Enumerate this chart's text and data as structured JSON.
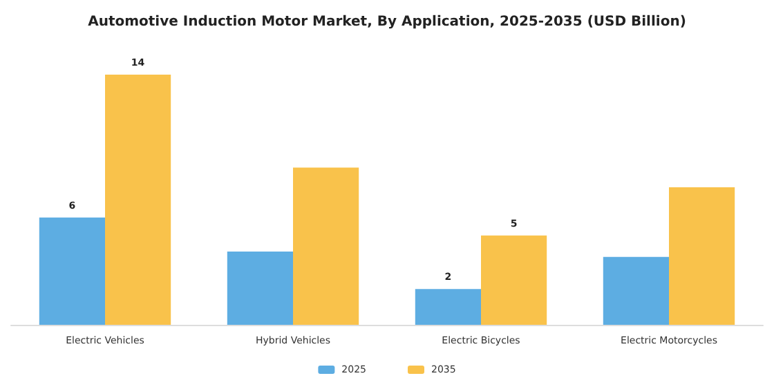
{
  "chart_data": {
    "type": "bar",
    "title": "Automotive Induction Motor Market, By Application, 2025-2035 (USD Billion)",
    "categories": [
      "Electric Vehicles",
      "Hybrid Vehicles",
      "Electric Bicycles",
      "Electric Motorcycles"
    ],
    "series": [
      {
        "name": "2025",
        "color": "#5dade2",
        "values": [
          6,
          4.1,
          2,
          3.8
        ],
        "value_labels": [
          "6",
          null,
          "2",
          null
        ]
      },
      {
        "name": "2035",
        "color": "#f9c24b",
        "values": [
          14,
          8.8,
          5,
          7.7
        ],
        "value_labels": [
          "14",
          null,
          "5",
          null
        ]
      }
    ],
    "legend": "bottom"
  }
}
